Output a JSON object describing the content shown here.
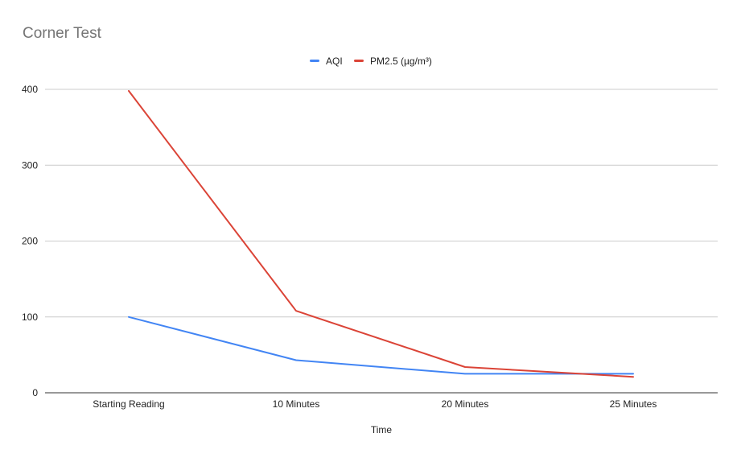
{
  "chart_data": {
    "type": "line",
    "title": "Corner Test",
    "xlabel": "Time",
    "ylabel": "",
    "categories": [
      "Starting Reading",
      "10 Minutes",
      "20 Minutes",
      "25 Minutes"
    ],
    "ylim": [
      0,
      400
    ],
    "yticks": [
      "0",
      "100",
      "200",
      "300",
      "400"
    ],
    "grid": true,
    "legend_position": "top-center",
    "series": [
      {
        "name": "AQI",
        "color": "#4285f4",
        "values": [
          100,
          43,
          25,
          25
        ]
      },
      {
        "name": "PM2.5 (µg/m³)",
        "color": "#db4437",
        "values": [
          398,
          108,
          34,
          21
        ]
      }
    ]
  }
}
